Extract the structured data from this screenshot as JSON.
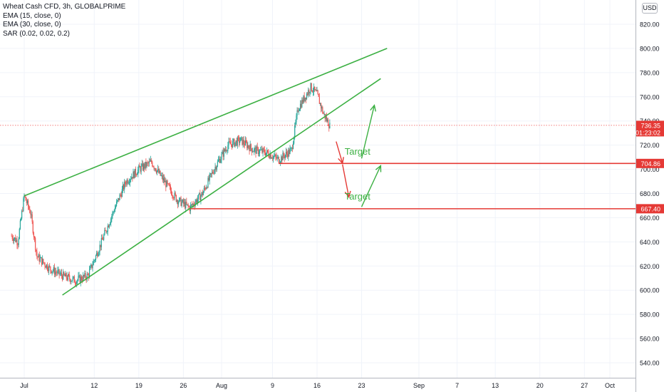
{
  "legend": {
    "title": "Wheat Cash CFD, 3h, GLOBALPRIME",
    "indicators": [
      "EMA (15, close, 0)",
      "EMA (30, close, 0)",
      "SAR (0.02, 0.02, 0.2)"
    ]
  },
  "currency": "USD",
  "colors": {
    "up": "#26a69a",
    "down": "#ef5350",
    "trendline": "#3cb043",
    "level": "#e53935",
    "arrow_red": "#e53935",
    "arrow_green": "#3cb043",
    "label_bg": "#e53935",
    "grid": "#f0f3fa",
    "axis_text": "#131722"
  },
  "chart_data": {
    "type": "candlestick",
    "title": "Wheat Cash CFD, 3h, GLOBALPRIME",
    "x_range": [
      "Jun 29",
      "Oct 1"
    ],
    "ylim": [
      530,
      830
    ],
    "y_ticks": [
      540,
      560,
      580,
      600,
      620,
      640,
      660,
      680,
      700,
      720,
      740,
      760,
      780,
      800,
      820
    ],
    "y_tick_labels": [
      "540.00",
      "560.00",
      "580.00",
      "600.00",
      "620.00",
      "640.00",
      "660.00",
      "680.00",
      "700.00",
      "720.00",
      "740.00",
      "760.00",
      "780.00",
      "800.00",
      "820.00"
    ],
    "x_ticks": [
      {
        "label": "Jul",
        "date": "Jul 1"
      },
      {
        "label": "12",
        "date": "Jul 12"
      },
      {
        "label": "19",
        "date": "Jul 19"
      },
      {
        "label": "26",
        "date": "Jul 26"
      },
      {
        "label": "Aug",
        "date": "Aug 1"
      },
      {
        "label": "9",
        "date": "Aug 9"
      },
      {
        "label": "16",
        "date": "Aug 16"
      },
      {
        "label": "23",
        "date": "Aug 23"
      },
      {
        "label": "Sep",
        "date": "Sep 1"
      },
      {
        "label": "7",
        "date": "Sep 7"
      },
      {
        "label": "13",
        "date": "Sep 13"
      },
      {
        "label": "20",
        "date": "Sep 20"
      },
      {
        "label": "27",
        "date": "Sep 27"
      },
      {
        "label": "Oct",
        "date": "Oct 1"
      }
    ],
    "price_path": [
      {
        "date": "Jun 29",
        "close": 645
      },
      {
        "date": "Jun 30",
        "close": 640
      },
      {
        "date": "Jul 1",
        "close": 678
      },
      {
        "date": "Jul 2",
        "close": 664
      },
      {
        "date": "Jul 3",
        "close": 628
      },
      {
        "date": "Jul 5",
        "close": 618
      },
      {
        "date": "Jul 7",
        "close": 612
      },
      {
        "date": "Jul 9",
        "close": 608
      },
      {
        "date": "Jul 11",
        "close": 612
      },
      {
        "date": "Jul 13",
        "close": 638
      },
      {
        "date": "Jul 15",
        "close": 665
      },
      {
        "date": "Jul 17",
        "close": 690
      },
      {
        "date": "Jul 19",
        "close": 700
      },
      {
        "date": "Jul 21",
        "close": 706
      },
      {
        "date": "Jul 23",
        "close": 690
      },
      {
        "date": "Jul 25",
        "close": 675
      },
      {
        "date": "Jul 27",
        "close": 668
      },
      {
        "date": "Jul 29",
        "close": 680
      },
      {
        "date": "Jul 31",
        "close": 702
      },
      {
        "date": "Aug 2",
        "close": 720
      },
      {
        "date": "Aug 4",
        "close": 724
      },
      {
        "date": "Aug 6",
        "close": 716
      },
      {
        "date": "Aug 8",
        "close": 714
      },
      {
        "date": "Aug 10",
        "close": 708
      },
      {
        "date": "Aug 12",
        "close": 716
      },
      {
        "date": "Aug 13",
        "close": 750
      },
      {
        "date": "Aug 15",
        "close": 768
      },
      {
        "date": "Aug 16",
        "close": 762
      },
      {
        "date": "Aug 17",
        "close": 746
      },
      {
        "date": "Aug 18",
        "close": 736
      }
    ],
    "last_price": {
      "value": 736.35,
      "label": "736.35",
      "countdown": "01:23:02"
    },
    "levels": [
      {
        "value": 704.86,
        "label": "704.86",
        "from": "Aug 10"
      },
      {
        "value": 667.4,
        "label": "667.40",
        "from": "Jul 27"
      }
    ],
    "trendlines": [
      {
        "name": "upper",
        "from": {
          "date": "Jul 1",
          "value": 678
        },
        "to": {
          "date": "Aug 27",
          "value": 800
        }
      },
      {
        "name": "lower",
        "from": {
          "date": "Jul 7",
          "value": 596
        },
        "to": {
          "date": "Aug 26",
          "value": 775
        }
      }
    ],
    "arrows": [
      {
        "color": "red",
        "from": {
          "date": "Aug 19",
          "value": 723
        },
        "to": {
          "date": "Aug 20",
          "value": 705
        }
      },
      {
        "color": "red",
        "from": {
          "date": "Aug 20",
          "value": 704
        },
        "to": {
          "date": "Aug 21",
          "value": 677
        }
      },
      {
        "color": "green",
        "from": {
          "date": "Aug 23",
          "value": 709
        },
        "to": {
          "date": "Aug 25",
          "value": 753
        }
      },
      {
        "color": "green",
        "from": {
          "date": "Aug 23",
          "value": 669
        },
        "to": {
          "date": "Aug 26",
          "value": 703
        }
      }
    ],
    "annotations": [
      {
        "text": "Target",
        "date": "Aug 20",
        "value": 712
      },
      {
        "text": "Target",
        "date": "Aug 20",
        "value": 675
      }
    ]
  }
}
